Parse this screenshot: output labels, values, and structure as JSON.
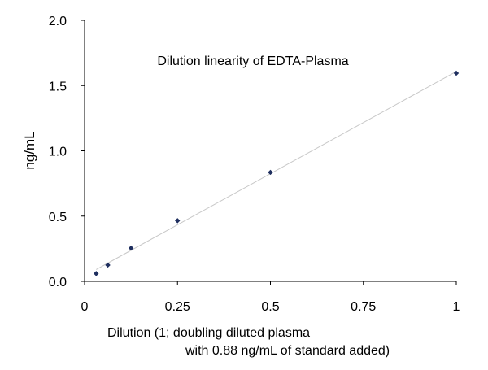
{
  "chart_data": {
    "type": "scatter",
    "title": "Dilution linearity of EDTA-Plasma",
    "xlabel_line1": "Dilution (1; doubling diluted plasma",
    "xlabel_line2": "with 0.88 ng/mL of standard added)",
    "ylabel": "ng/mL",
    "xlim": [
      0,
      1
    ],
    "ylim": [
      0,
      2.0
    ],
    "x_ticks": [
      0,
      0.25,
      0.5,
      0.75,
      1
    ],
    "x_tick_labels": [
      "0",
      "0.25",
      "0.5",
      "0.75",
      "1"
    ],
    "y_ticks": [
      0,
      0.5,
      1.0,
      1.5,
      2.0
    ],
    "y_tick_labels": [
      "0.0",
      "0.5",
      "1.0",
      "1.5",
      "2.0"
    ],
    "grid": false,
    "legend": "none",
    "trendline": "linear",
    "series": [
      {
        "x": [
          0.03125,
          0.0625,
          0.125,
          0.25,
          0.5,
          1
        ],
        "y": [
          0.06,
          0.125,
          0.255,
          0.465,
          0.835,
          1.595
        ]
      }
    ],
    "colors": {
      "marker": "#1f2f5f",
      "trendline": "#c8c8c8",
      "axis": "#000000"
    }
  }
}
